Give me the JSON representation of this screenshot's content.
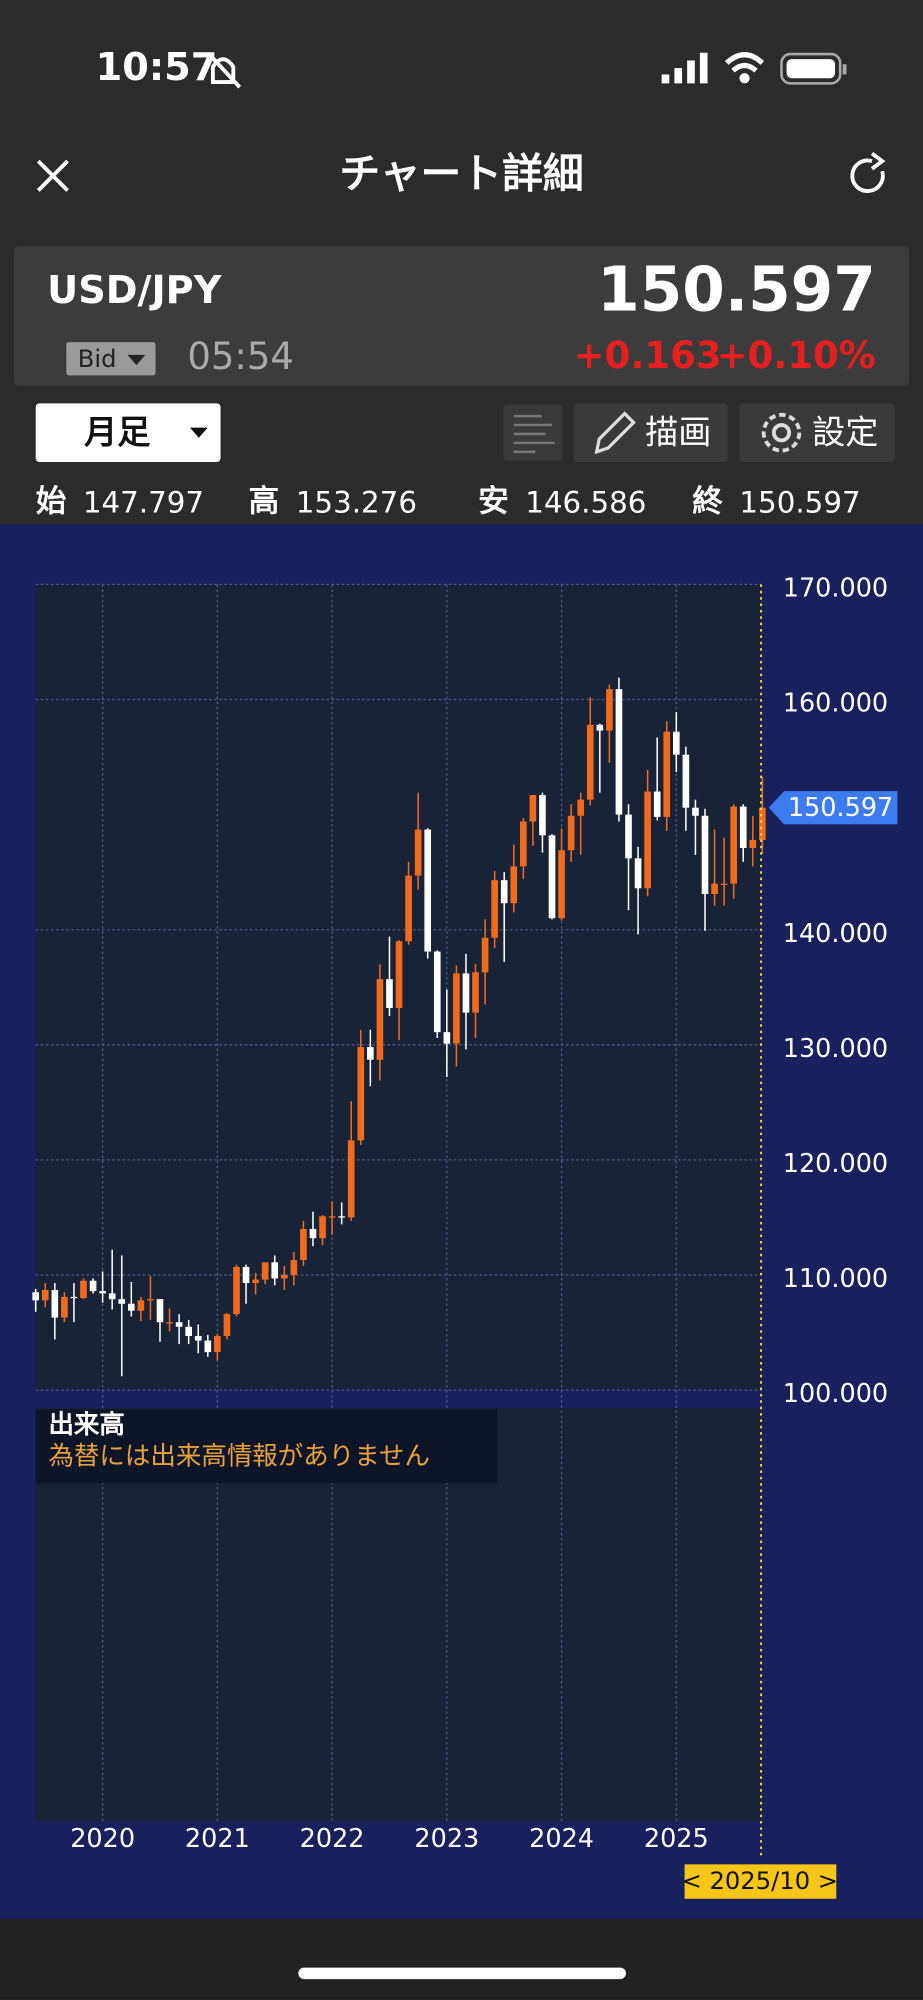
{
  "status_bar": {
    "time": "10:57"
  },
  "header": {
    "title": "チャート詳細"
  },
  "quote": {
    "symbol": "USD/JPY",
    "price": "150.597",
    "bid_label": "Bid",
    "time": "05:54",
    "change": "+0.163",
    "change_pct": "+0.10%"
  },
  "toolbar": {
    "period": "月足",
    "draw": "描画",
    "settings": "設定"
  },
  "ohlc": [
    {
      "label": "始",
      "value": "147.797"
    },
    {
      "label": "高",
      "value": "153.276"
    },
    {
      "label": "安",
      "value": "146.586"
    },
    {
      "label": "終",
      "value": "150.597"
    }
  ],
  "volume_panel": {
    "title": "出来高",
    "message": "為替には出来高情報がありません"
  },
  "chart_data": {
    "type": "candlestick",
    "up_color": "#f26b1d",
    "down_color": "#ffffff",
    "grid": true,
    "cursor_label": "< 2025/10 >",
    "categories": [
      null,
      null,
      null,
      null,
      null,
      null,
      null,
      "2020",
      null,
      null,
      null,
      null,
      null,
      null,
      null,
      null,
      null,
      null,
      null,
      "2021",
      null,
      null,
      null,
      null,
      null,
      null,
      null,
      null,
      null,
      null,
      null,
      "2022",
      null,
      null,
      null,
      null,
      null,
      null,
      null,
      null,
      null,
      null,
      null,
      "2023",
      null,
      null,
      null,
      null,
      null,
      null,
      null,
      null,
      null,
      null,
      null,
      "2024",
      null,
      null,
      null,
      null,
      null,
      null,
      null,
      null,
      null,
      null,
      null,
      "2025",
      null,
      null,
      null,
      null,
      null,
      null,
      null,
      null,
      null
    ],
    "open": [
      108.5,
      107.8,
      108.7,
      106.3,
      108.1,
      108.0,
      109.5,
      108.6,
      108.4,
      107.9,
      107.5,
      106.9,
      107.8,
      107.9,
      105.9,
      105.9,
      105.5,
      104.7,
      104.3,
      103.3,
      104.7,
      106.6,
      110.7,
      109.3,
      109.6,
      111.1,
      109.7,
      110.0,
      111.3,
      114.0,
      113.2,
      115.1,
      115.1,
      115.0,
      121.7,
      129.8,
      128.7,
      135.7,
      133.2,
      139.0,
      144.7,
      148.7,
      138.1,
      131.1,
      130.1,
      136.2,
      132.8,
      136.3,
      139.3,
      144.3,
      142.3,
      145.5,
      149.4,
      151.7,
      148.2,
      141.0,
      146.9,
      149.9,
      151.3,
      157.8,
      157.3,
      160.9,
      150.0,
      146.2,
      143.6,
      152.0,
      149.8,
      157.2,
      155.2,
      150.6,
      149.9,
      143.1,
      144.0,
      144.0,
      150.7,
      147.1,
      147.797
    ],
    "high": [
      108.8,
      109.3,
      109.3,
      108.5,
      109.3,
      109.7,
      109.7,
      110.3,
      112.2,
      111.7,
      109.4,
      108.1,
      109.9,
      107.9,
      107.1,
      106.6,
      106.1,
      105.7,
      104.8,
      104.9,
      106.7,
      110.9,
      110.9,
      110.2,
      111.1,
      111.7,
      110.8,
      112.0,
      114.7,
      115.5,
      115.2,
      116.4,
      116.3,
      125.1,
      131.3,
      131.3,
      137.0,
      139.4,
      139.1,
      145.9,
      151.9,
      148.8,
      138.2,
      134.8,
      136.9,
      137.9,
      137.0,
      140.9,
      145.1,
      145.0,
      147.4,
      149.7,
      151.7,
      151.9,
      148.3,
      148.8,
      150.9,
      151.9,
      160.2,
      157.9,
      161.3,
      161.9,
      150.9,
      147.2,
      153.9,
      156.7,
      158.1,
      158.9,
      155.9,
      151.3,
      150.5,
      148.7,
      148.0,
      150.9,
      150.9,
      149.9,
      153.276
    ],
    "low": [
      106.8,
      107.2,
      104.4,
      105.9,
      105.9,
      107.9,
      108.4,
      107.6,
      107.0,
      101.2,
      106.4,
      106.0,
      106.1,
      104.2,
      105.1,
      104.0,
      104.0,
      103.2,
      102.9,
      102.6,
      104.4,
      106.4,
      107.5,
      108.3,
      109.2,
      109.1,
      108.7,
      109.1,
      110.8,
      112.5,
      112.6,
      113.5,
      114.4,
      114.7,
      121.3,
      126.4,
      126.9,
      132.5,
      130.4,
      138.7,
      143.5,
      137.5,
      130.6,
      127.2,
      128.1,
      129.6,
      130.6,
      133.5,
      138.4,
      137.2,
      141.5,
      144.4,
      147.3,
      146.7,
      140.9,
      140.8,
      145.9,
      146.5,
      150.8,
      151.9,
      154.5,
      149.4,
      141.7,
      139.6,
      142.9,
      149.5,
      148.6,
      153.7,
      148.6,
      146.5,
      139.9,
      142.1,
      142.1,
      142.7,
      145.9,
      145.5,
      146.586
    ],
    "close": [
      107.8,
      108.7,
      106.3,
      108.1,
      108.0,
      109.5,
      108.6,
      108.4,
      107.9,
      107.5,
      106.9,
      107.8,
      107.9,
      105.9,
      105.9,
      105.5,
      104.7,
      104.3,
      103.3,
      104.7,
      106.6,
      110.7,
      109.3,
      109.6,
      111.1,
      109.7,
      110.0,
      111.3,
      114.0,
      113.2,
      115.1,
      115.1,
      115.0,
      121.7,
      129.8,
      128.7,
      135.7,
      133.2,
      139.0,
      144.7,
      148.7,
      138.1,
      131.1,
      130.1,
      136.2,
      132.8,
      136.3,
      139.3,
      144.3,
      142.3,
      145.5,
      149.4,
      151.7,
      148.2,
      141.0,
      146.9,
      149.9,
      151.3,
      157.8,
      157.3,
      160.9,
      150.0,
      146.2,
      143.6,
      152.0,
      149.8,
      157.2,
      155.2,
      150.6,
      149.9,
      143.1,
      144.0,
      144.0,
      150.7,
      147.1,
      147.8,
      150.597
    ],
    "ylim": [
      100,
      170
    ],
    "yticks": [
      {
        "value": 100,
        "label": "100.000"
      },
      {
        "value": 110,
        "label": "110.000"
      },
      {
        "value": 120,
        "label": "120.000"
      },
      {
        "value": 130,
        "label": "130.000"
      },
      {
        "value": 140,
        "label": "140.000"
      },
      {
        "value": 160,
        "label": "160.000"
      },
      {
        "value": 170,
        "label": "170.000"
      }
    ]
  }
}
